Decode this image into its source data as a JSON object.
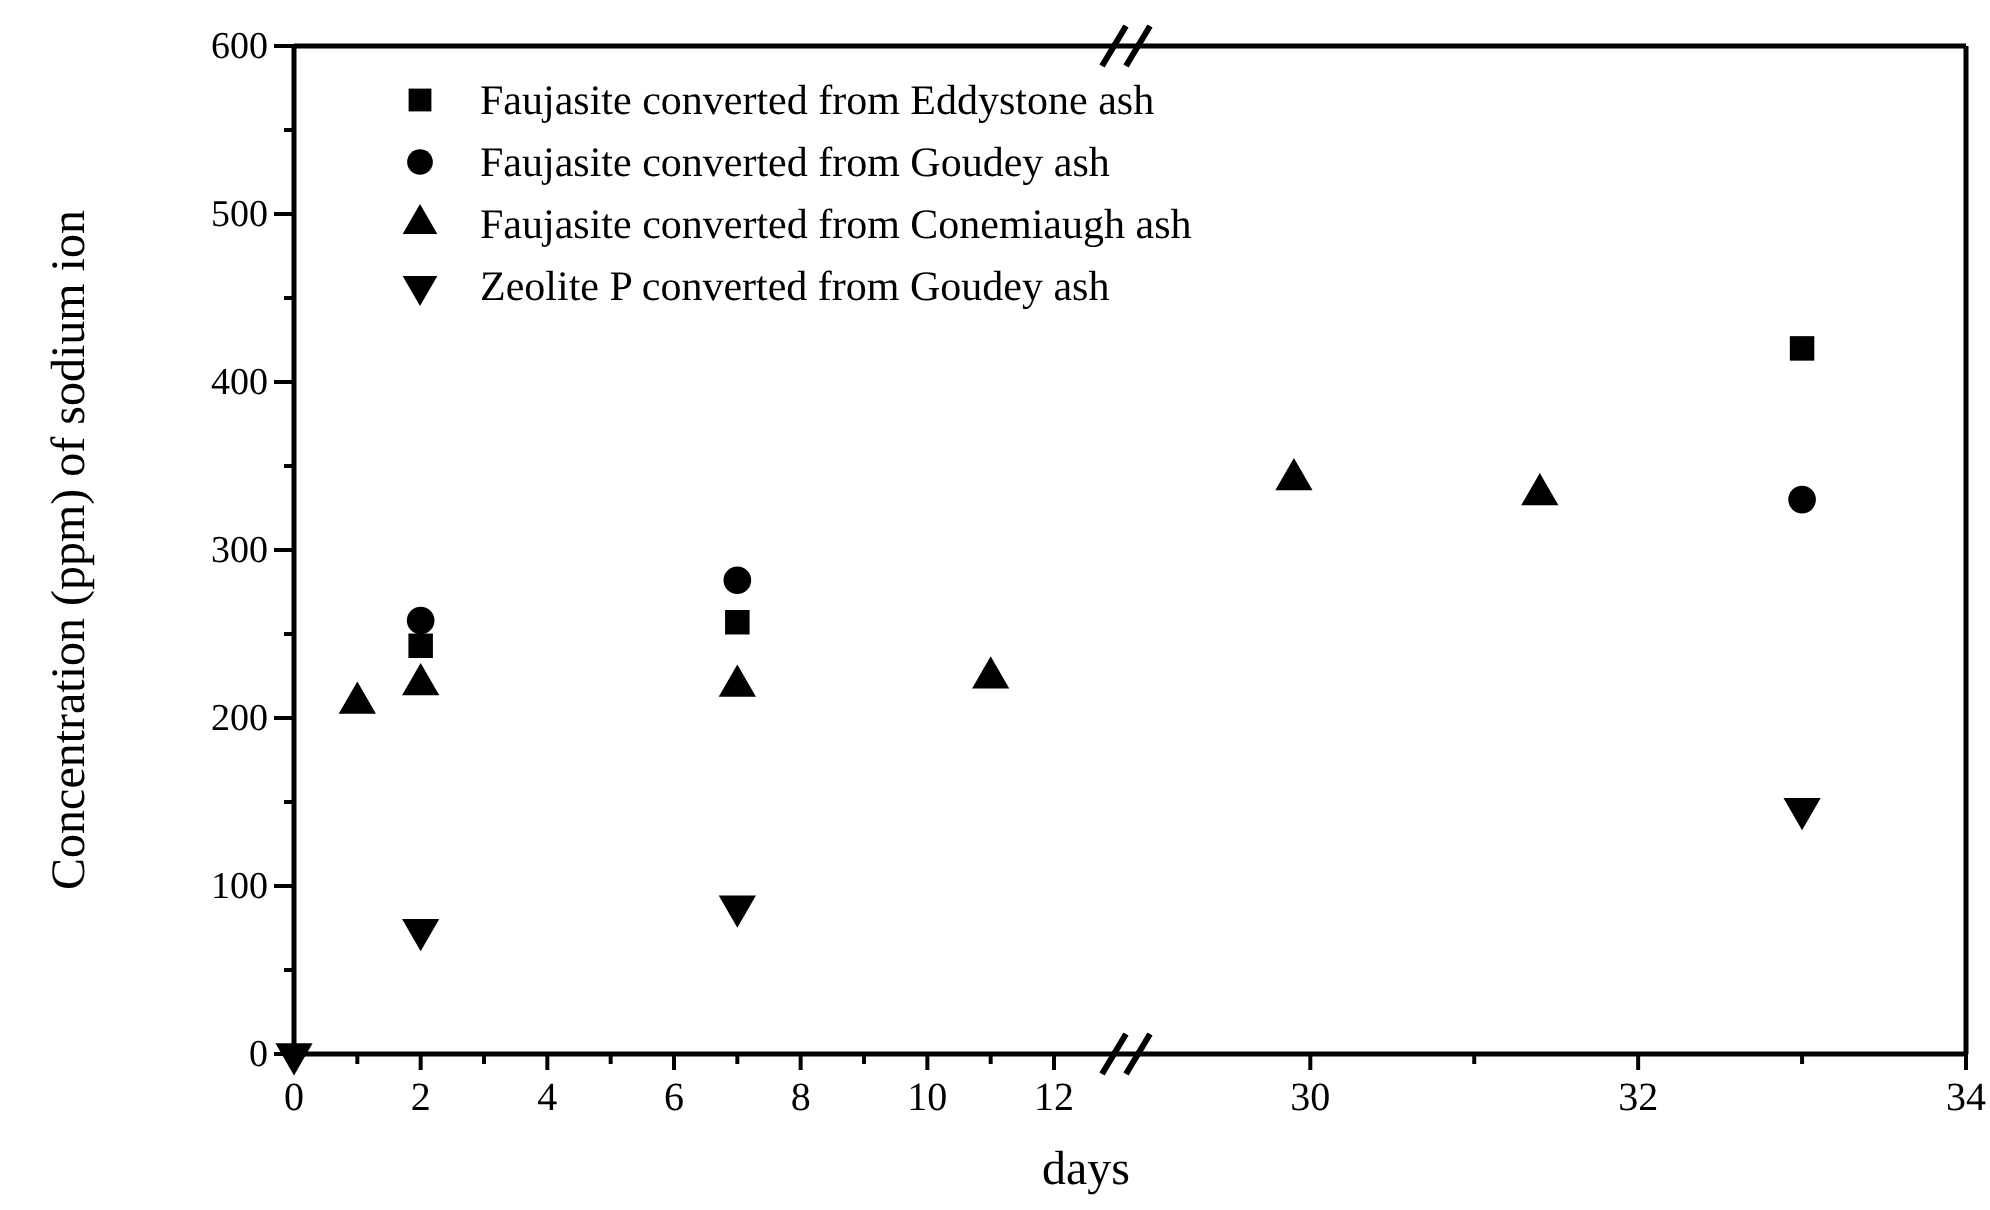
{
  "chart_data": [
    {
      "type": "scatter",
      "xlabel": "days",
      "ylabel": "Concentration (ppm) of sodium ion",
      "xlim": [
        0,
        13.2
      ],
      "ylim": [
        0,
        600
      ],
      "xticks": [
        0,
        {
          "value": 1,
          "label": null
        },
        2,
        {
          "value": 3,
          "label": null
        },
        4,
        {
          "value": 5,
          "label": null
        },
        6,
        {
          "value": 7,
          "label": null
        },
        8,
        {
          "value": 9,
          "label": null
        },
        10,
        {
          "value": 11,
          "label": null
        },
        12
      ],
      "yticks": [
        0,
        {
          "value": 50,
          "label": null
        },
        100,
        {
          "value": 150,
          "label": null
        },
        200,
        {
          "value": 250,
          "label": null
        },
        300,
        {
          "value": 350,
          "label": null
        },
        400,
        {
          "value": 450,
          "label": null
        },
        500,
        {
          "value": 550,
          "label": null
        },
        600
      ],
      "legend": "top",
      "series": [
        {
          "name": "Faujasite converted from Eddystone ash",
          "color": "#000000",
          "marker": "square",
          "x": [
            2,
            7
          ],
          "values": [
            243,
            257
          ]
        },
        {
          "name": "Faujasite converted from Goudey ash",
          "color": "#000000",
          "marker": "circle",
          "x": [
            2,
            7
          ],
          "values": [
            258,
            282
          ]
        },
        {
          "name": "Faujasite converted from Conemiaugh ash",
          "color": "#000000",
          "marker": "triangle",
          "x": [
            1,
            2,
            7,
            11
          ],
          "values": [
            209,
            220,
            219,
            224
          ]
        },
        {
          "name": "Zeolite P converted from Goudey ash",
          "color": "#000000",
          "marker": "triangle-down",
          "x": [
            0,
            2,
            7
          ],
          "values": [
            0,
            74,
            88
          ]
        }
      ]
    },
    {
      "type": "scatter",
      "xlim": [
        28.9,
        34
      ],
      "ylim": [
        0,
        600
      ],
      "tick_labels": "x",
      "xticks": [
        30,
        {
          "value": 31,
          "label": null
        },
        32,
        {
          "value": 33,
          "label": null
        },
        34
      ],
      "series": [
        {
          "color": "#000000",
          "marker": "square",
          "x": [
            33
          ],
          "values": [
            420
          ]
        },
        {
          "color": "#000000",
          "marker": "circle",
          "x": [
            33
          ],
          "values": [
            330
          ]
        },
        {
          "color": "#000000",
          "marker": "triangle",
          "x": [
            29.9,
            31.4
          ],
          "values": [
            342,
            333
          ]
        },
        {
          "color": "#000000",
          "marker": "triangle-down",
          "x": [
            33
          ],
          "values": [
            146
          ]
        }
      ]
    }
  ]
}
